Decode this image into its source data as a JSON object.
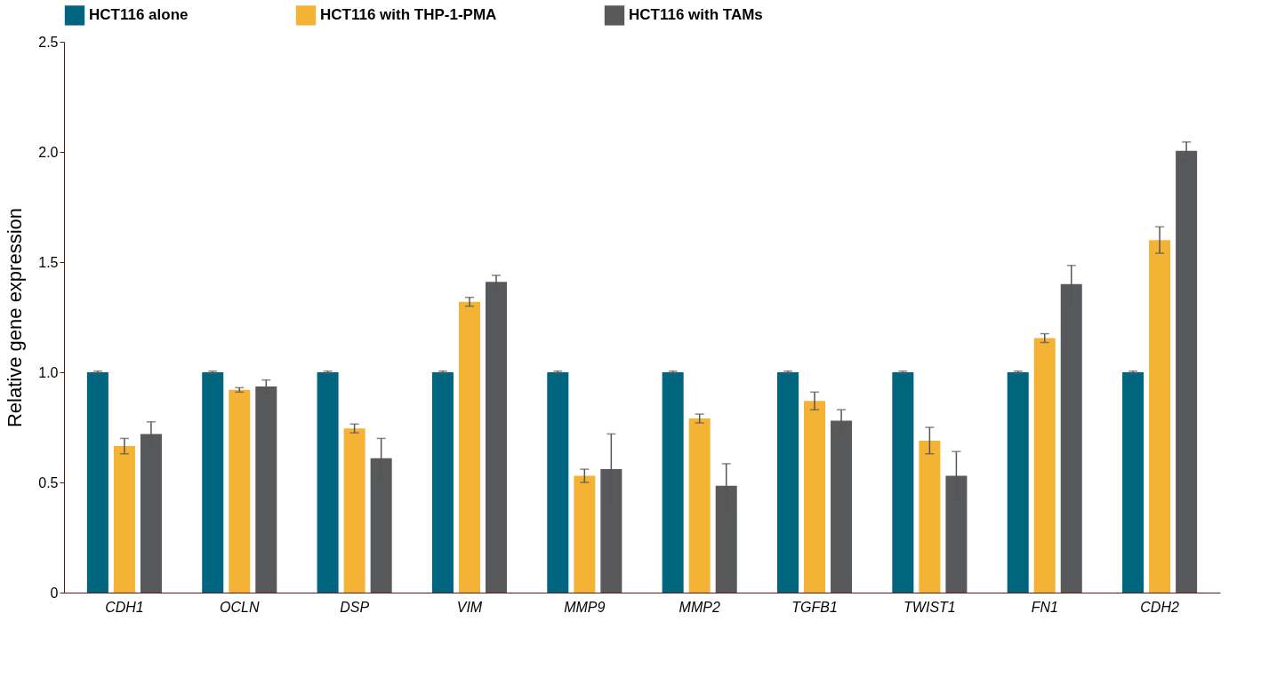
{
  "chart_data": {
    "type": "bar",
    "ylabel": "Relative gene expression",
    "categories": [
      "CDH1",
      "OCLN",
      "DSP",
      "VIM",
      "MMP9",
      "MMP2",
      "TGFB1",
      "TWIST1",
      "FN1",
      "CDH2"
    ],
    "series": [
      {
        "name": "HCT116 alone",
        "color": "#006680",
        "values": [
          1.0,
          1.0,
          1.0,
          1.0,
          1.0,
          1.0,
          1.0,
          1.0,
          1.0,
          1.0
        ],
        "errors": [
          0.005,
          0.005,
          0.005,
          0.005,
          0.005,
          0.005,
          0.005,
          0.005,
          0.005,
          0.005
        ]
      },
      {
        "name": "HCT116 with THP-1-PMA",
        "color": "#f5b335",
        "values": [
          0.665,
          0.92,
          0.745,
          1.32,
          0.53,
          0.79,
          0.87,
          0.69,
          1.155,
          1.6
        ],
        "errors": [
          0.035,
          0.01,
          0.02,
          0.02,
          0.03,
          0.02,
          0.04,
          0.06,
          0.02,
          0.06
        ]
      },
      {
        "name": "HCT116 with TAMs",
        "color": "#58595b",
        "values": [
          0.72,
          0.935,
          0.61,
          1.41,
          0.56,
          0.485,
          0.78,
          0.53,
          1.4,
          2.005
        ],
        "errors": [
          0.055,
          0.03,
          0.09,
          0.03,
          0.16,
          0.1,
          0.05,
          0.11,
          0.085,
          0.04
        ]
      }
    ],
    "ylim": [
      0,
      2.5
    ],
    "yticks": [
      0,
      0.5,
      {
        "value": 1,
        "label": "1.0"
      },
      1.5,
      {
        "value": 2,
        "label": "2.0"
      },
      2.5
    ],
    "grid": false,
    "legend": "top"
  }
}
